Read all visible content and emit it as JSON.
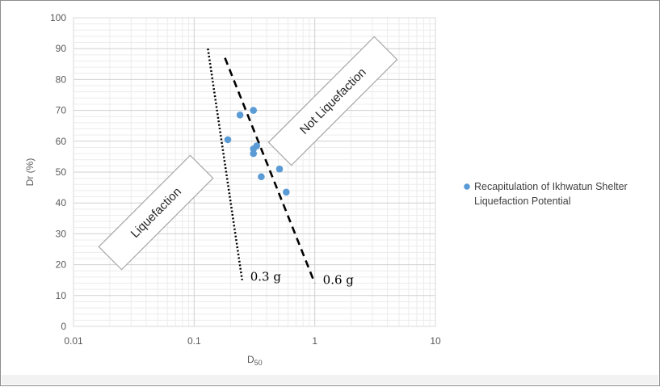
{
  "chart_data": {
    "type": "scatter",
    "x_scale": "log",
    "xlim": [
      0.01,
      10
    ],
    "ylim": [
      0,
      100
    ],
    "x_ticks": [
      "0.01",
      "0.1",
      "1",
      "10"
    ],
    "y_ticks": [
      "0",
      "10",
      "20",
      "30",
      "40",
      "50",
      "60",
      "70",
      "80",
      "90",
      "100"
    ],
    "ylabel": "Dr (%)",
    "xlabel_main": "D",
    "xlabel_sub": "50",
    "grid": true,
    "legend_position": "right",
    "series": [
      {
        "name": "Recapitulation of Ikhwatun Shelter Liquefaction Potential",
        "legend_lines": [
          "Recapitulation of Ikhwatun Shelter",
          "Liquefaction Potential"
        ],
        "color": "#5b9bd5",
        "points": [
          {
            "x": 0.19,
            "y": 60.5
          },
          {
            "x": 0.24,
            "y": 68.5
          },
          {
            "x": 0.31,
            "y": 70
          },
          {
            "x": 0.31,
            "y": 57.5
          },
          {
            "x": 0.31,
            "y": 56
          },
          {
            "x": 0.33,
            "y": 58.5
          },
          {
            "x": 0.36,
            "y": 48.5
          },
          {
            "x": 0.51,
            "y": 51
          },
          {
            "x": 0.58,
            "y": 43.5
          }
        ]
      }
    ],
    "boundary_lines": [
      {
        "label": "0.3 g",
        "style": "dotted",
        "from": {
          "x": 0.13,
          "y": 90
        },
        "to": {
          "x": 0.25,
          "y": 15
        }
      },
      {
        "label": "0.6 g",
        "style": "dashed",
        "from": {
          "x": 0.18,
          "y": 87
        },
        "to": {
          "x": 1.0,
          "y": 14
        }
      }
    ],
    "annotations": [
      {
        "text": "Liquefaction"
      },
      {
        "text": "Not Liquefaction"
      }
    ]
  }
}
